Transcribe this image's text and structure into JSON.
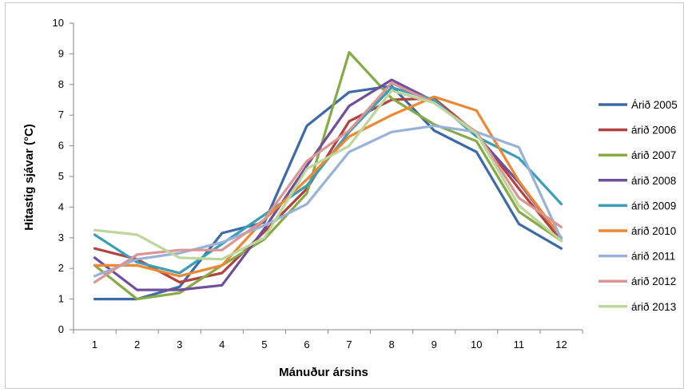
{
  "chart_data": {
    "type": "line",
    "title": "",
    "xlabel": "Mánuður ársins",
    "ylabel": "Hitastig sjávar (°C)",
    "categories": [
      "1",
      "2",
      "3",
      "4",
      "5",
      "6",
      "7",
      "8",
      "9",
      "10",
      "11",
      "12"
    ],
    "ylim": [
      0,
      10
    ],
    "yticks": [
      "0",
      "1",
      "2",
      "3",
      "4",
      "5",
      "6",
      "7",
      "8",
      "9",
      "10"
    ],
    "grid": false,
    "legend_position": "right",
    "series": [
      {
        "name": "Árið 2005",
        "color": "#3c6aa8",
        "values": [
          1.0,
          1.0,
          1.4,
          3.15,
          3.5,
          6.65,
          7.75,
          7.95,
          6.5,
          5.8,
          3.45,
          2.65
        ]
      },
      {
        "name": "árið 2006",
        "color": "#b2423f",
        "values": [
          2.65,
          2.3,
          1.55,
          1.85,
          3.2,
          4.6,
          6.8,
          7.5,
          7.55,
          6.4,
          4.6,
          2.9
        ]
      },
      {
        "name": "árið 2007",
        "color": "#86aa45",
        "values": [
          2.1,
          1.0,
          1.2,
          2.1,
          2.95,
          4.45,
          9.05,
          7.55,
          6.7,
          6.15,
          3.85,
          2.9
        ]
      },
      {
        "name": "árið 2008",
        "color": "#6f4f9a",
        "values": [
          2.35,
          1.3,
          1.3,
          1.45,
          3.3,
          5.35,
          7.3,
          8.15,
          7.45,
          6.35,
          4.8,
          3.0
        ]
      },
      {
        "name": "árið 2009",
        "color": "#3a9fb6",
        "values": [
          3.1,
          2.2,
          1.85,
          2.8,
          3.75,
          4.7,
          6.45,
          7.9,
          7.5,
          6.3,
          5.6,
          4.1
        ]
      },
      {
        "name": "árið 2010",
        "color": "#ec8733",
        "values": [
          2.1,
          2.1,
          1.75,
          2.1,
          3.6,
          4.9,
          6.3,
          7.0,
          7.6,
          7.15,
          4.85,
          3.0
        ]
      },
      {
        "name": "árið 2011",
        "color": "#98b1d9",
        "values": [
          1.75,
          2.3,
          2.5,
          2.85,
          3.4,
          4.1,
          5.8,
          6.45,
          6.65,
          6.45,
          5.95,
          2.95
        ]
      },
      {
        "name": "árið 2012",
        "color": "#da9594",
        "values": [
          1.55,
          2.45,
          2.6,
          2.6,
          3.6,
          5.5,
          6.5,
          8.05,
          7.4,
          6.45,
          4.3,
          3.35
        ]
      },
      {
        "name": "árið 2013",
        "color": "#bcd69b",
        "values": [
          3.25,
          3.1,
          2.35,
          2.3,
          3.0,
          5.25,
          6.0,
          7.8,
          7.4,
          6.4,
          4.05,
          2.9
        ]
      }
    ]
  }
}
